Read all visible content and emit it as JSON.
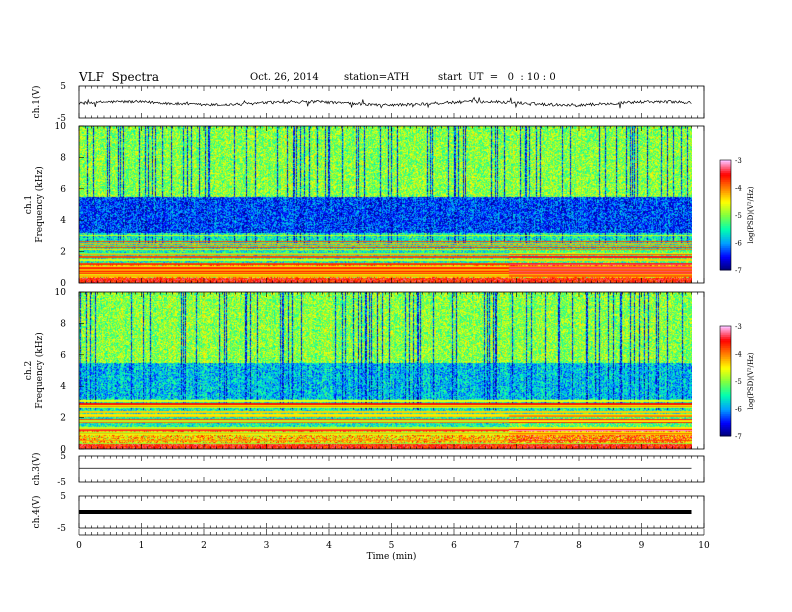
{
  "header": {
    "title": "VLF  Spectra",
    "date": "Oct. 26, 2014",
    "station": "station=ATH",
    "start": "start  UT  =   0  : 10 : 0"
  },
  "chart_data": [
    {
      "type": "line",
      "panel": "ch1-waveform",
      "ylabel": "ch.1(V)",
      "ylim": [
        -5,
        5
      ],
      "yticks": [
        "5",
        "-5"
      ],
      "x_unit": "min",
      "x_range": [
        0,
        9.8
      ],
      "series": [
        {
          "values_approx_mean": -0.4,
          "noise_amplitude": 0.7
        }
      ]
    },
    {
      "type": "heatmap",
      "panel": "ch1-spectrogram",
      "ylabel": "ch.1\nFrequency  (kHz)",
      "ylim": [
        0,
        10
      ],
      "yticks": [
        "0",
        "2",
        "4",
        "6",
        "8",
        "10"
      ],
      "colorbar": {
        "label": "log(PSD)(V²/Hz)",
        "range": [
          -7,
          -3
        ],
        "ticks": [
          "-3",
          "-4",
          "-5",
          "-6",
          "-7"
        ]
      }
    },
    {
      "type": "heatmap",
      "panel": "ch2-spectrogram",
      "ylabel": "ch.2\nFrequency  (kHz)",
      "ylim": [
        0,
        10
      ],
      "yticks": [
        "0",
        "2",
        "4",
        "6",
        "8",
        "10"
      ],
      "colorbar": {
        "label": "log(PSD)(V²/Hz)",
        "range": [
          -7,
          -3
        ],
        "ticks": [
          "-3",
          "-4",
          "-5",
          "-6",
          "-7"
        ]
      }
    },
    {
      "type": "line",
      "panel": "ch3-waveform",
      "ylabel": "ch.3(V)",
      "ylim": [
        -5,
        5
      ],
      "yticks": [
        "5",
        "-5"
      ],
      "series": [
        {
          "values_approx_mean": 0.3
        }
      ]
    },
    {
      "type": "line",
      "panel": "ch4-waveform",
      "ylabel": "ch.4(V)",
      "ylim": [
        -5,
        5
      ],
      "yticks": [
        "5",
        "-5"
      ],
      "series": [
        {
          "values_approx_mean": 0.0
        }
      ]
    }
  ],
  "xaxis": {
    "label": "Time  (min)",
    "ticks": [
      "0",
      "1",
      "2",
      "3",
      "4",
      "5",
      "6",
      "7",
      "8",
      "9",
      "10"
    ],
    "range": [
      0,
      10
    ]
  },
  "colors": {
    "scale": [
      "#000070",
      "#0000ff",
      "#00a0ff",
      "#00ffb0",
      "#80ff40",
      "#ffff00",
      "#ff8000",
      "#ff0000",
      "#ffc0ff"
    ]
  }
}
